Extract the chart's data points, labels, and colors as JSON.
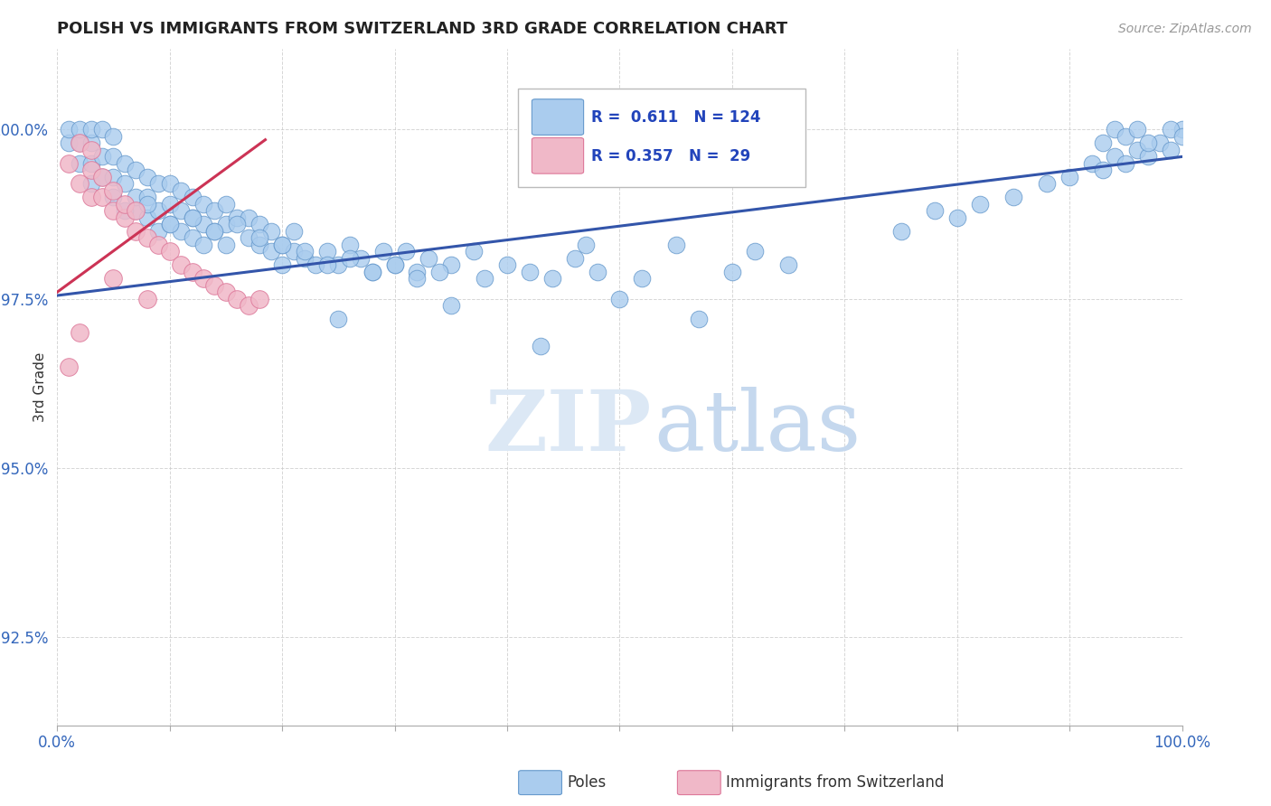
{
  "title": "POLISH VS IMMIGRANTS FROM SWITZERLAND 3RD GRADE CORRELATION CHART",
  "source": "Source: ZipAtlas.com",
  "ylabel": "3rd Grade",
  "y_ticks": [
    92.5,
    95.0,
    97.5,
    100.0
  ],
  "y_tick_labels": [
    "92.5%",
    "95.0%",
    "97.5%",
    "100.0%"
  ],
  "x_range": [
    0.0,
    1.0
  ],
  "y_range": [
    91.2,
    101.2
  ],
  "blue_R": 0.611,
  "blue_N": 124,
  "pink_R": 0.357,
  "pink_N": 29,
  "blue_color": "#aaccee",
  "blue_edge": "#6699cc",
  "pink_color": "#f0b8c8",
  "pink_edge": "#dd7799",
  "blue_line_color": "#3355aa",
  "pink_line_color": "#cc3355",
  "blue_trend_x": [
    0.0,
    1.0
  ],
  "blue_trend_y": [
    97.55,
    99.6
  ],
  "pink_trend_x": [
    0.0,
    0.185
  ],
  "pink_trend_y": [
    97.6,
    99.85
  ],
  "watermark_zip": "ZIP",
  "watermark_atlas": "atlas",
  "legend_R_color": "#2244bb"
}
